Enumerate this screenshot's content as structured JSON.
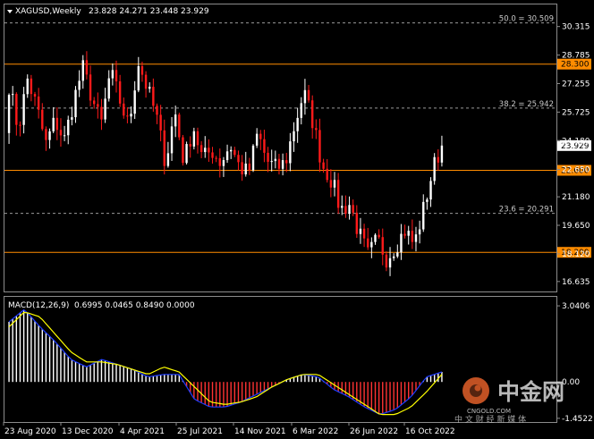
{
  "header": {
    "symbol_label": "XAGUSD,Weekly",
    "ohlc_label": "23.828 24.271 23.448 23.929"
  },
  "macd": {
    "label": "MACD(12,26,9)",
    "values_label": "0.6995 0.0465 0.8490 0.0000",
    "axis_labels": [
      "3.0406",
      "0.00",
      "-1.4522"
    ]
  },
  "colors": {
    "background": "#000000",
    "bull_candle": "#ffffff",
    "bear_candle": "#ff1a1a",
    "level_line": "#ff8c00",
    "fib_line": "#9a9a9a",
    "macd_line": "#1e3cff",
    "signal_line": "#ffff00",
    "hist_pos": "#ffffff",
    "hist_neg": "#ff3333",
    "price_tag": "#ff8c00"
  },
  "watermark": {
    "brand": "中金网",
    "site": "CNGOLD.COM",
    "slogan": "中 文 财 经 新 媒 体"
  },
  "chart_data": [
    {
      "type": "candlestick",
      "title": "XAGUSD,Weekly",
      "y_ticks": [
        30.315,
        28.785,
        27.255,
        25.725,
        24.18,
        22.65,
        21.18,
        19.65,
        18.12,
        16.635
      ],
      "x_tick_labels": [
        "23 Aug 2020",
        "13 Dec 2020",
        "4 Apr 2021",
        "25 Jul 2021",
        "14 Nov 2021",
        "6 Mar 2022",
        "26 Jun 2022",
        "16 Oct 2022"
      ],
      "current_price": "23.929",
      "horizontal_levels": [
        {
          "label": "28.300",
          "value": 28.3
        },
        {
          "label": "22.600",
          "value": 22.6
        },
        {
          "label": "18.200",
          "value": 18.2
        }
      ],
      "fibonacci_levels": [
        {
          "label": "50.0 = 30.509",
          "value": 30.509
        },
        {
          "label": "38.2 = 25.942",
          "value": 25.942
        },
        {
          "label": "23.6 = 20.291",
          "value": 20.291
        }
      ],
      "price_anchors": [
        27.2,
        24.8,
        27.5,
        26.0,
        24.0,
        25.3,
        24.2,
        26.3,
        28.1,
        26.5,
        25.0,
        27.9,
        26.4,
        24.9,
        28.5,
        27.0,
        25.5,
        23.0,
        25.8,
        23.0,
        25.0,
        23.2,
        23.7,
        23.0,
        24.0,
        22.8,
        22.4,
        24.6,
        23.1,
        22.7,
        23.0,
        25.0,
        26.8,
        25.2,
        22.9,
        22.1,
        20.5,
        20.8,
        19.2,
        18.0,
        18.9,
        17.9,
        18.6,
        19.4,
        18.6,
        20.5,
        22.6,
        24.0
      ],
      "ylim": [
        16.1,
        31.5
      ]
    },
    {
      "type": "bar+line",
      "title": "MACD(12,26,9)",
      "series": [
        {
          "name": "MACD",
          "anchors": [
            2.4,
            2.9,
            2.2,
            1.6,
            0.9,
            0.6,
            0.9,
            0.7,
            0.5,
            0.2,
            0.3,
            0.3,
            -0.7,
            -1.0,
            -1.0,
            -0.8,
            -0.5,
            -0.2,
            0.1,
            0.3,
            0.2,
            -0.3,
            -0.6,
            -1.0,
            -1.3,
            -1.1,
            -0.6,
            0.2,
            0.4
          ]
        },
        {
          "name": "Signal",
          "anchors": [
            2.2,
            2.8,
            2.6,
            1.9,
            1.2,
            0.8,
            0.8,
            0.7,
            0.5,
            0.3,
            0.6,
            0.4,
            -0.2,
            -0.8,
            -0.9,
            -0.8,
            -0.6,
            -0.2,
            0.1,
            0.3,
            0.3,
            -0.1,
            -0.5,
            -0.9,
            -1.3,
            -1.3,
            -1.0,
            -0.4,
            0.3
          ]
        }
      ],
      "ylim": [
        -1.6,
        3.4
      ]
    }
  ]
}
